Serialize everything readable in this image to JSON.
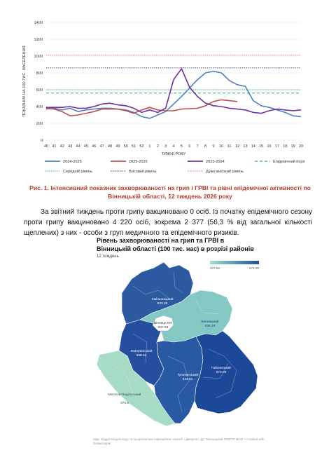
{
  "chart_data": {
    "type": "line",
    "title": "",
    "xlabel": "ТИЖНІ РОКУ",
    "ylabel": "ПОКАЗНИК НА 100 ТИС. НАСЕЛЕННЯ",
    "ylim": [
      0,
      1400
    ],
    "yticks": [
      "0",
      "200",
      "400",
      "600",
      "800",
      "1000",
      "1200",
      "1400"
    ],
    "categories": [
      "40",
      "41",
      "42",
      "43",
      "44",
      "45",
      "46",
      "47",
      "48",
      "49",
      "50",
      "51",
      "52",
      "1",
      "2",
      "3",
      "4",
      "5",
      "6",
      "7",
      "8",
      "9",
      "10",
      "11",
      "12",
      "13",
      "14",
      "15",
      "16",
      "17",
      "18",
      "19",
      "20"
    ],
    "series": [
      {
        "name": "2024-2025",
        "color": "#4e81bd",
        "style": "solid",
        "values": [
          370,
          380,
          360,
          380,
          340,
          360,
          370,
          380,
          380,
          370,
          360,
          330,
          280,
          260,
          300,
          340,
          430,
          520,
          620,
          720,
          800,
          820,
          800,
          710,
          660,
          640,
          470,
          410,
          390,
          360,
          330,
          290,
          280
        ]
      },
      {
        "name": "2025-2026",
        "color": "#c0504d",
        "style": "solid",
        "values": [
          380,
          370,
          340,
          290,
          300,
          320,
          340,
          370,
          370,
          370,
          350,
          320,
          360,
          390,
          360,
          350,
          350,
          370,
          375,
          380,
          410,
          460,
          480,
          470,
          460,
          null,
          null,
          null,
          null,
          null,
          null,
          null,
          null
        ]
      },
      {
        "name": "2023-2024",
        "color": "#7030a0",
        "style": "solid",
        "values": [
          390,
          390,
          390,
          400,
          380,
          380,
          400,
          430,
          440,
          420,
          410,
          380,
          330,
          360,
          330,
          380,
          720,
          850,
          630,
          520,
          440,
          410,
          400,
          380,
          370,
          360,
          330,
          320,
          350,
          370,
          360,
          350,
          360
        ]
      },
      {
        "name": "Епідемічний поріг",
        "color": "#0e9e54",
        "style": "dash",
        "values": [
          560,
          560,
          560,
          560,
          560,
          560,
          560,
          560,
          560,
          560,
          560,
          560,
          560,
          560,
          560,
          560,
          560,
          560,
          560,
          560,
          560,
          560,
          560,
          560,
          560,
          560,
          560,
          560,
          560,
          560,
          560,
          560,
          560
        ]
      },
      {
        "name": "Середній рівень",
        "color": "#36a8a8",
        "style": "dot",
        "values": [
          600,
          600,
          600,
          600,
          600,
          600,
          600,
          600,
          600,
          600,
          600,
          600,
          600,
          600,
          600,
          600,
          600,
          600,
          600,
          600,
          600,
          600,
          600,
          600,
          600,
          600,
          600,
          600,
          600,
          600,
          600,
          600,
          600
        ]
      },
      {
        "name": "Високий рівень",
        "color": "#1f2d6b",
        "style": "dot",
        "values": [
          860,
          860,
          860,
          860,
          860,
          860,
          860,
          860,
          860,
          860,
          860,
          860,
          860,
          860,
          860,
          860,
          860,
          860,
          860,
          860,
          860,
          860,
          860,
          860,
          860,
          860,
          860,
          860,
          860,
          860,
          860,
          860,
          860
        ]
      },
      {
        "name": "Дуже високий рівень",
        "color": "#e06f6f",
        "style": "dot",
        "values": [
          1010,
          1010,
          1010,
          1010,
          1010,
          1010,
          1010,
          1010,
          1010,
          1010,
          1010,
          1010,
          1010,
          1010,
          1010,
          1010,
          1010,
          1010,
          1010,
          1010,
          1010,
          1010,
          1010,
          1010,
          1010,
          1010,
          1010,
          1010,
          1010,
          1010,
          1010,
          1010,
          1010
        ]
      }
    ],
    "grid": true,
    "legend": "bottom"
  },
  "caption": "Рис. 1. Інтенсивний показник захворюваності на грип і ГРВІ та рівні епідемічної активності по Вінницькій області, 12 тиждень 2026 року",
  "paragraph": "За звітний тиждень проти грипу вакциновано 0 осіб. Із початку епідемічного сезону проти грипу вакциновано 4 220 осіб, зокрема 2 377 (56,3 % від загальної кількості щеплених) з них - особи з груп медичного та епідемічного ризиків.",
  "map": {
    "title": "Рівень захворюваності на грип та ГРВІ в Вінницькій області (100 тис. нас) в розрізі районів",
    "subtitle": "12 тиждень",
    "scale_min": "327.53",
    "scale_max": "573.09",
    "color_low": "#a6dfc9",
    "color_high": "#1f4e99",
    "districts": [
      {
        "name": "Хмільницький",
        "value": "533.28",
        "color": "#2c5aa0"
      },
      {
        "name": "Вінницький",
        "value": "436.19",
        "color": "#84c8c4"
      },
      {
        "name": "Вінниця МТ",
        "value": "327.53",
        "color": "#ffffff"
      },
      {
        "name": "Жмеринський",
        "value": "558.42",
        "color": "#254f9e"
      },
      {
        "name": "Гайсинський",
        "value": "573.09",
        "color": "#1c4898"
      },
      {
        "name": "Тульчинський",
        "value": "544.51",
        "color": "#2a59a4"
      },
      {
        "name": "Могилів-Подільський",
        "value": "376.6",
        "color": "#a6dcc6"
      }
    ],
    "source": "Мар: Відділ епіднагляду та профілактики інфекційних хвороб • Джерело: ДУ \"Вінницький ОЦКПХ МОЗ\" • Created with Datawrapper"
  }
}
